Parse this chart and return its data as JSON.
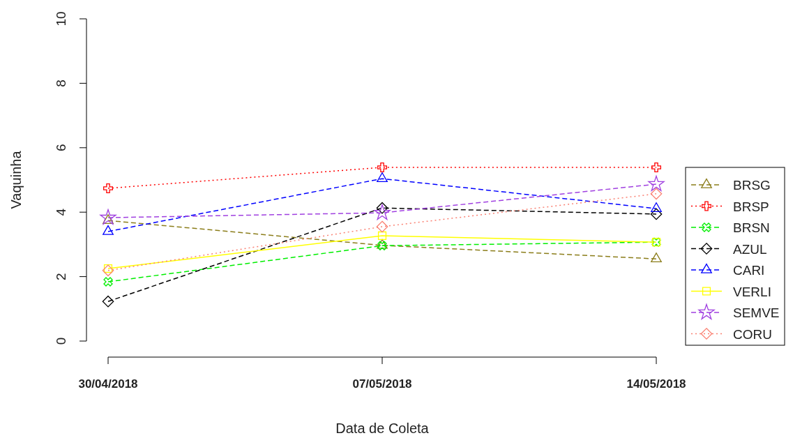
{
  "chart_data": {
    "type": "line",
    "xlabel": "Data de Coleta",
    "ylabel": "Vaquinha",
    "categories": [
      "30/04/2018",
      "07/05/2018",
      "14/05/2018"
    ],
    "ylim": [
      0,
      10
    ],
    "yticks": [
      0,
      2,
      4,
      6,
      8,
      10
    ],
    "grid": false,
    "legend": "right",
    "series": [
      {
        "name": "BRSG",
        "color": "#8b7d1a",
        "marker": "triangle",
        "line_style": "dashed",
        "values": [
          3.74,
          2.97,
          2.55
        ]
      },
      {
        "name": "BRSP",
        "color": "#ff0000",
        "marker": "cross",
        "line_style": "dotted",
        "values": [
          4.74,
          5.39,
          5.39
        ]
      },
      {
        "name": "BRSN",
        "color": "#00ee00",
        "marker": "cross",
        "line_style": "dashed",
        "values": [
          1.84,
          2.96,
          3.07
        ]
      },
      {
        "name": "AZUL",
        "color": "#000000",
        "marker": "diamond",
        "line_style": "dashed",
        "values": [
          1.23,
          4.13,
          3.94
        ]
      },
      {
        "name": "CARI",
        "color": "#0000ff",
        "marker": "triangle",
        "line_style": "dashed",
        "values": [
          3.4,
          5.04,
          4.11
        ]
      },
      {
        "name": "VERLI",
        "color": "#ffff00",
        "marker": "square",
        "line_style": "solid",
        "values": [
          2.25,
          3.27,
          3.07
        ]
      },
      {
        "name": "SEMVE",
        "color": "#a040e0",
        "marker": "star",
        "line_style": "dashed",
        "values": [
          3.83,
          3.98,
          4.87
        ]
      },
      {
        "name": "CORU",
        "color": "#fa8072",
        "marker": "diamond",
        "line_style": "dotted",
        "values": [
          2.19,
          3.55,
          4.57
        ]
      }
    ]
  }
}
